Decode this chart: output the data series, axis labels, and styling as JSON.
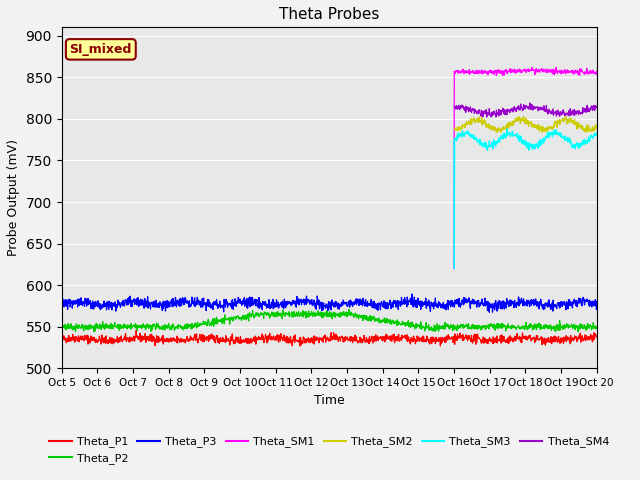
{
  "title": "Theta Probes",
  "xlabel": "Time",
  "ylabel": "Probe Output (mV)",
  "ylim": [
    500,
    910
  ],
  "yticks": [
    500,
    550,
    600,
    650,
    700,
    750,
    800,
    850,
    900
  ],
  "x_tick_labels": [
    "Oct 5",
    "Oct 6",
    "Oct 7",
    "Oct 8",
    "Oct 9",
    "Oct 10",
    "Oct 11",
    "Oct 12",
    "Oct 13",
    "Oct 14",
    "Oct 15",
    "Oct 16",
    "Oct 17",
    "Oct 18",
    "Oct 19",
    "Oct 20"
  ],
  "annotation_text": "SI_mixed",
  "annotation_color": "#8B0000",
  "annotation_bg": "#FFFF99",
  "annotation_border": "#8B0000",
  "colors": {
    "Theta_P1": "#FF0000",
    "Theta_P2": "#00CC00",
    "Theta_P3": "#0000FF",
    "Theta_SM1": "#FF00FF",
    "Theta_SM2": "#CCCC00",
    "Theta_SM3": "#00FFFF",
    "Theta_SM4": "#9900CC"
  },
  "background_color": "#E8E8E8",
  "grid_color": "#FFFFFF",
  "fig_bg": "#F2F2F2"
}
